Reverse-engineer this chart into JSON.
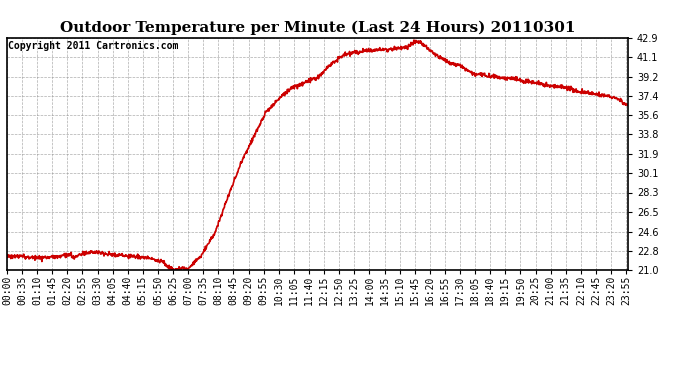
{
  "title": "Outdoor Temperature per Minute (Last 24 Hours) 20110301",
  "copyright_text": "Copyright 2011 Cartronics.com",
  "line_color": "#cc0000",
  "background_color": "#ffffff",
  "plot_bg_color": "#ffffff",
  "grid_color": "#999999",
  "ylim": [
    21.0,
    42.9
  ],
  "yticks": [
    21.0,
    22.8,
    24.6,
    26.5,
    28.3,
    30.1,
    31.9,
    33.8,
    35.6,
    37.4,
    39.2,
    41.1,
    42.9
  ],
  "x_tick_labels": [
    "00:00",
    "00:35",
    "01:10",
    "01:45",
    "02:20",
    "02:55",
    "03:30",
    "04:05",
    "04:40",
    "05:15",
    "05:50",
    "06:25",
    "07:00",
    "07:35",
    "08:10",
    "08:45",
    "09:20",
    "09:55",
    "10:30",
    "11:05",
    "11:40",
    "12:15",
    "12:50",
    "13:25",
    "14:00",
    "14:35",
    "15:10",
    "15:45",
    "16:20",
    "16:55",
    "17:30",
    "18:05",
    "18:40",
    "19:15",
    "19:50",
    "20:25",
    "21:00",
    "21:35",
    "22:10",
    "22:45",
    "23:20",
    "23:55"
  ],
  "title_fontsize": 11,
  "tick_fontsize": 7,
  "copyright_fontsize": 7,
  "line_width": 1.2
}
